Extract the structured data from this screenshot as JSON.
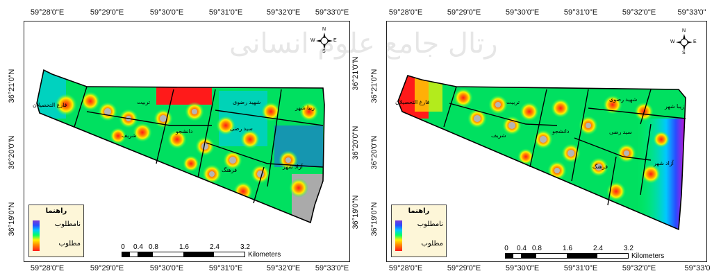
{
  "maps": [
    {
      "id": "left",
      "top_ticks": [
        "59°28'0\"E",
        "59°29'0\"E",
        "59°30'0\"E",
        "59°31'0\"E",
        "59°32'0\"E",
        "59°33'0\"E"
      ],
      "bottom_ticks": [
        "59°28'0\"E",
        "59°29'0\"E",
        "59°30'0\"E",
        "59°31'0\"E",
        "59°32'0\"E",
        "59°33'0\"E"
      ],
      "left_ticks": [
        "36°21'0\"N",
        "36°20'0\"N",
        "36°19'0\"N"
      ],
      "right_ticks": [
        "36°21'0\"N",
        "36°20'0\"N",
        "36°19'0\"N"
      ],
      "districts": [
        "فارغ التحصیلان",
        "تربیت",
        "شریف",
        "دانشجو",
        "شهید رضوی",
        "زیبا شهر",
        "سید رضی",
        "فرهنگ",
        "آزاد شهر"
      ],
      "legend": {
        "title": "راهنما",
        "high": "نامطلوب",
        "low": "مطلوب"
      },
      "scale": {
        "labels": [
          "0",
          "0.4",
          "0.8",
          "1.6",
          "2.4",
          "3.2"
        ],
        "unit": "Kilometers"
      },
      "north": {
        "n": "N",
        "s": "S",
        "e": "E",
        "w": "W"
      }
    },
    {
      "id": "right",
      "top_ticks": [
        "59°28'0\"E",
        "59°29'0\"E",
        "59°30'0\"E",
        "59°31'0\"E",
        "59°32'0\"E",
        "59°33'0\""
      ],
      "bottom_ticks": [
        "59°28'0\"E",
        "59°29'0\"E",
        "59°30'0\"E",
        "59°31'0\"E",
        "59°32'0\"E",
        "59°33'0"
      ],
      "left_ticks": [
        "36°21'0\"N",
        "36°20'0\"N",
        "36°19'0\"N"
      ],
      "districts": [
        "فارغ التحصیلان",
        "تربیت",
        "شریف",
        "دانشجو",
        "شهید رضوی",
        "زیبا شهر",
        "سید رضی",
        "فرهنگ",
        "آزاد شهر"
      ],
      "legend": {
        "title": "راهنما",
        "high": "نامطلوب",
        "low": "مطلوب"
      },
      "scale": {
        "labels": [
          "0",
          "0.4",
          "0.8",
          "1.6",
          "2.4",
          "3.2"
        ],
        "unit": "Kilometers"
      },
      "north": {
        "n": "N",
        "s": "S",
        "e": "E",
        "w": "W"
      }
    }
  ],
  "watermark": "رتال جامع علوم انسانی",
  "colors": {
    "bad": "#ff1a1a",
    "mid": "#00ff64",
    "good": "#7a3bd6"
  }
}
